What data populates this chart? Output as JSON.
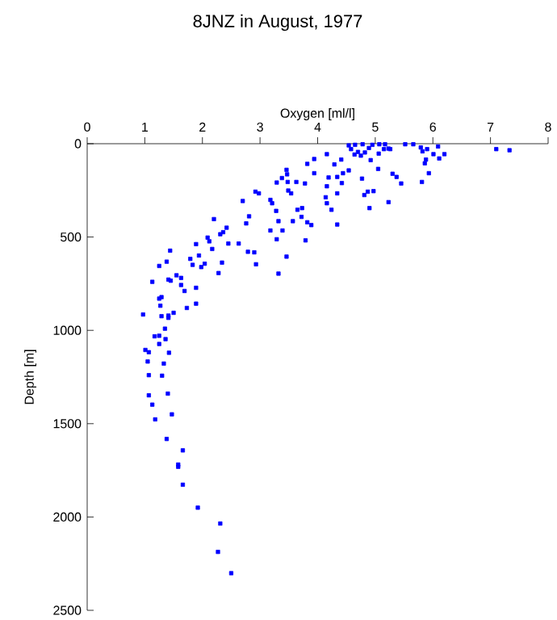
{
  "chart_data": {
    "type": "scatter",
    "title": "8JNZ in August, 1977",
    "xlabel": "Oxygen [ml/l]",
    "ylabel": "Depth [m]",
    "xlim": [
      0,
      8
    ],
    "ylim": [
      2500,
      0
    ],
    "xticks": [
      0,
      1,
      2,
      3,
      4,
      5,
      6,
      7,
      8
    ],
    "yticks": [
      0,
      500,
      1000,
      1500,
      2000,
      2500
    ],
    "grid": false,
    "marker": "square",
    "color": "#0000ff",
    "x": [
      3.94,
      3.82,
      3.94,
      3.46,
      3.47,
      3.38,
      3.29,
      3.48,
      3.63,
      3.78,
      3.49,
      3.54,
      2.7,
      2.92,
      2.98,
      3.18,
      3.21,
      3.28,
      3.65,
      3.73,
      3.72,
      3.32,
      3.57,
      3.82,
      3.89,
      2.81,
      2.76,
      2.2,
      2.42,
      2.36,
      2.31,
      2.09,
      2.12,
      1.89,
      2.45,
      2.63,
      3.18,
      3.39,
      3.29,
      3.79,
      2.79,
      2.9,
      2.17,
      1.94,
      1.79,
      1.83,
      2.04,
      1.98,
      2.34,
      2.93,
      3.46,
      3.32,
      2.28,
      1.44,
      1.38,
      1.25,
      1.55,
      1.63,
      1.41,
      1.45,
      1.63,
      1.13,
      1.69,
      1.89,
      1.29,
      1.25,
      1.27,
      1.89,
      1.73,
      1.5,
      0.97,
      1.29,
      1.41,
      1.41,
      1.35,
      1.17,
      1.25,
      1.36,
      1.25,
      1.42,
      1.01,
      1.07,
      1.05,
      1.33,
      1.07,
      1.3,
      1.07,
      1.4,
      1.13,
      1.47,
      1.18,
      1.38,
      1.66,
      1.58,
      1.58,
      1.66,
      1.92,
      2.31,
      2.27,
      2.5,
      4.54,
      4.65,
      4.78,
      4.58,
      4.7,
      4.64,
      4.75,
      4.82,
      4.89,
      4.95,
      5.07,
      5.17,
      5.23,
      5.15,
      4.92,
      5.06,
      5.26,
      5.52,
      5.66,
      5.79,
      5.82,
      5.9,
      6.09,
      6.01,
      6.2,
      5.88,
      5.86,
      6.11,
      5.93,
      5.81,
      5.45,
      5.37,
      5.3,
      5.05,
      4.97,
      4.87,
      4.81,
      4.9,
      5.23,
      4.77,
      4.54,
      4.44,
      4.34,
      4.19,
      4.34,
      4.42,
      4.16,
      4.14,
      4.16,
      4.24,
      4.34,
      4.29,
      4.41,
      4.16,
      7.1,
      7.33
    ],
    "values": [
      82,
      108,
      158,
      140,
      164,
      184,
      208,
      205,
      205,
      213,
      251,
      266,
      307,
      257,
      266,
      301,
      319,
      360,
      354,
      345,
      392,
      415,
      415,
      421,
      436,
      389,
      427,
      404,
      450,
      474,
      485,
      503,
      523,
      538,
      535,
      535,
      465,
      465,
      512,
      518,
      579,
      582,
      564,
      599,
      617,
      649,
      643,
      661,
      637,
      646,
      605,
      696,
      693,
      573,
      632,
      655,
      705,
      719,
      728,
      734,
      757,
      740,
      789,
      772,
      822,
      830,
      868,
      857,
      880,
      906,
      915,
      924,
      921,
      933,
      991,
      1032,
      1029,
      1047,
      1073,
      1120,
      1105,
      1117,
      1167,
      1178,
      1240,
      1243,
      1348,
      1339,
      1398,
      1450,
      1477,
      1582,
      1643,
      1719,
      1731,
      1827,
      1950,
      2035,
      2187,
      2301,
      9,
      6,
      3,
      29,
      44,
      58,
      64,
      47,
      23,
      6,
      3,
      3,
      26,
      29,
      88,
      53,
      29,
      3,
      3,
      20,
      41,
      29,
      15,
      56,
      56,
      85,
      105,
      79,
      158,
      205,
      213,
      178,
      161,
      135,
      254,
      257,
      275,
      345,
      313,
      187,
      143,
      158,
      178,
      181,
      266,
      211,
      228,
      287,
      319,
      354,
      433,
      111,
      85,
      56,
      29,
      35
    ]
  }
}
